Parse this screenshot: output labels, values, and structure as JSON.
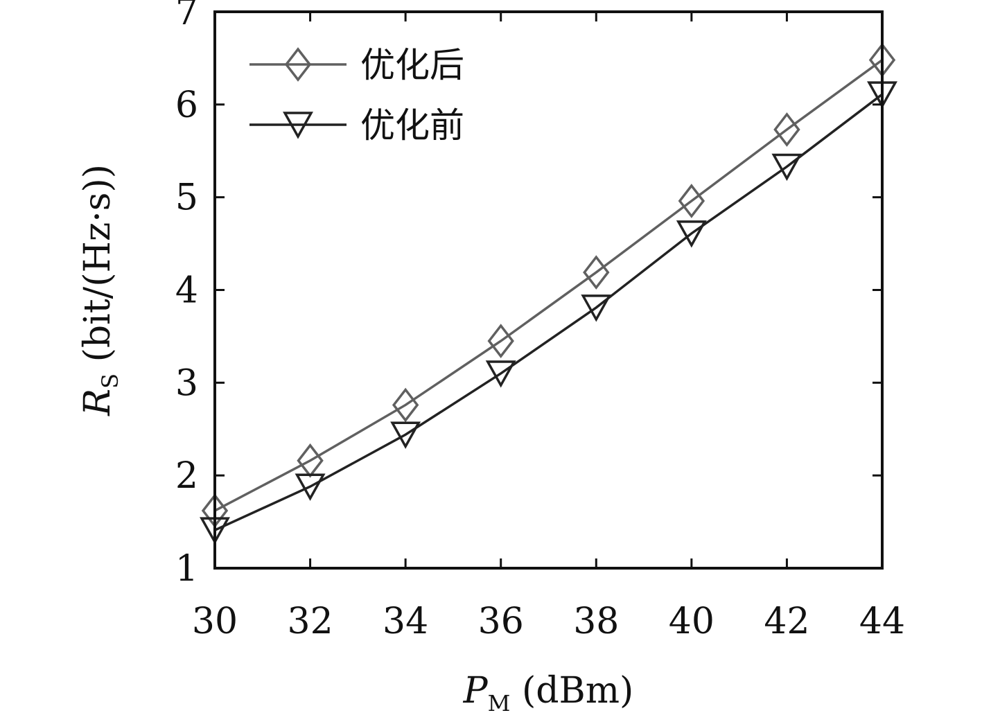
{
  "chart_data": {
    "type": "line",
    "x": [
      30,
      32,
      34,
      36,
      38,
      40,
      42,
      44
    ],
    "xlim": [
      30,
      44
    ],
    "ylim": [
      1,
      7
    ],
    "xticks": [
      "30",
      "32",
      "34",
      "36",
      "38",
      "40",
      "42",
      "44"
    ],
    "yticks": [
      "1",
      "2",
      "3",
      "4",
      "5",
      "6",
      "7"
    ],
    "xlabel": {
      "main": "P",
      "sub": "M",
      "rest": " (dBm)"
    },
    "ylabel": {
      "main": "R",
      "sub": "S",
      "rest": " (bit/(Hz·s))"
    },
    "grid": false,
    "legend_position": "top-left",
    "series": [
      {
        "name": "优化后",
        "marker": "diamond",
        "color": "#606060",
        "values": [
          1.62,
          2.16,
          2.76,
          3.45,
          4.19,
          4.96,
          5.73,
          6.48
        ]
      },
      {
        "name": "优化前",
        "marker": "triangle-down",
        "color": "#222222",
        "values": [
          1.41,
          1.88,
          2.44,
          3.1,
          3.81,
          4.61,
          5.33,
          6.11
        ]
      }
    ]
  }
}
